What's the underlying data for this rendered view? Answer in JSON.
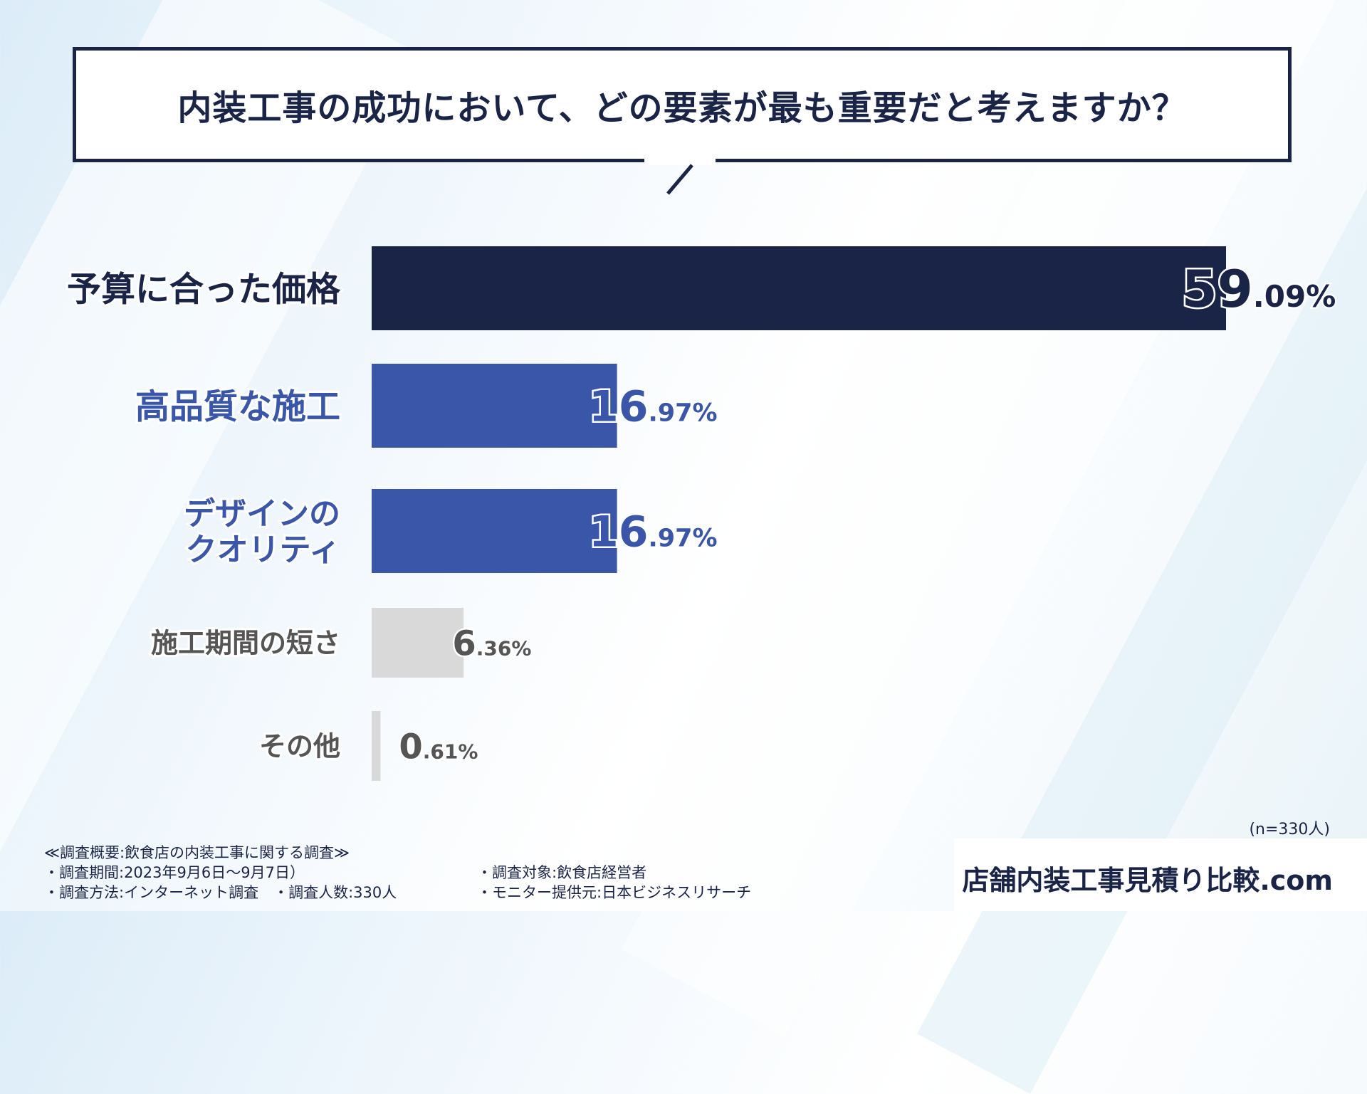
{
  "chart_data": {
    "type": "bar",
    "orientation": "horizontal",
    "title": "内装工事の成功において、どの要素が最も重要だと考えますか？",
    "categories": [
      "予算に合った価格",
      "高品質な施工",
      "デザインのクオリティ",
      "施工期間の短さ",
      "その他"
    ],
    "category_lines": [
      [
        "予算に合った価格"
      ],
      [
        "高品質な施工"
      ],
      [
        "デザインの",
        "クオリティ"
      ],
      [
        "施工期間の短さ"
      ],
      [
        "その他"
      ]
    ],
    "values": [
      59.09,
      16.97,
      16.97,
      6.36,
      0.61
    ],
    "value_labels_int": [
      "59",
      "16",
      "16",
      "6",
      "0"
    ],
    "value_labels_dec": [
      ".09%",
      ".97%",
      ".97%",
      ".36%",
      ".61%"
    ],
    "colors": [
      "#1a2447",
      "#3a56a8",
      "#3a56a8",
      "#d9d9d9",
      "#d9d9d9"
    ],
    "label_colors": [
      "#1a2447",
      "#3a56a8",
      "#3a56a8",
      "#555555",
      "#555555"
    ],
    "xlim": [
      0,
      59.09
    ],
    "grid": false,
    "legend": "none"
  },
  "sample_size": "(n=330人)",
  "survey": {
    "heading": "≪調査概要:飲食店の内装工事に関する調査≫",
    "period": "・調査期間:2023年9月6日〜9月7日）",
    "method": "・調査方法:インターネット調査　・調査人数:330人",
    "target": "・調査対象:飲食店経営者",
    "provider": "・モニター提供元:日本ビジネスリサーチ"
  },
  "brand": "店舗内装工事見積り比較.com"
}
